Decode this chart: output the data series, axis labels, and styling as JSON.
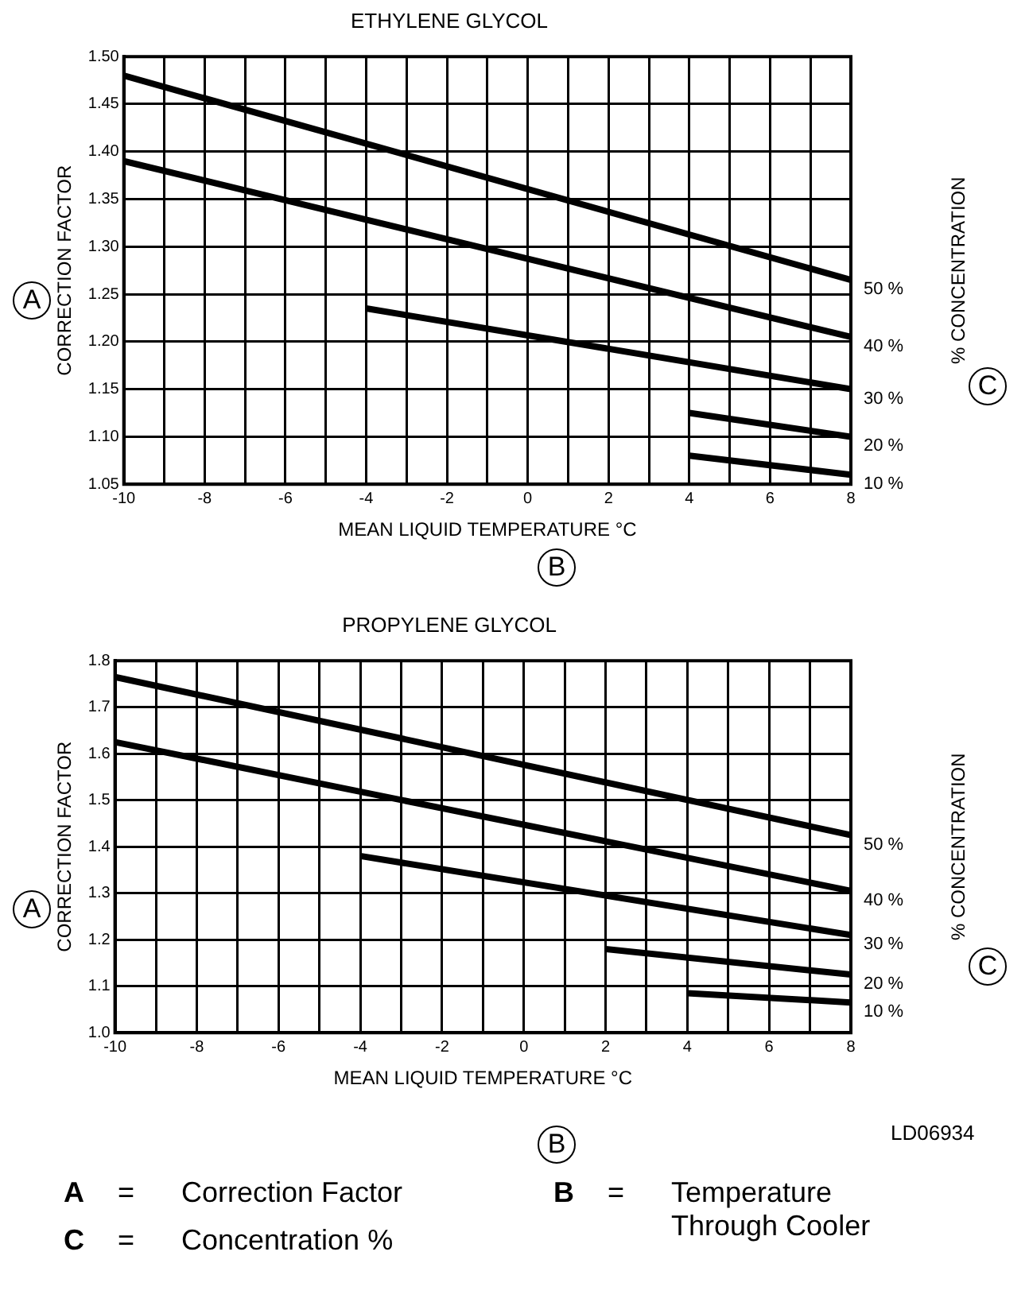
{
  "chart_data": [
    {
      "type": "line",
      "title": "ETHYLENE GLYCOL",
      "xlabel": "MEAN LIQUID TEMPERATURE °C",
      "ylabel": "CORRECTION FACTOR",
      "y2label": "% CONCENTRATION",
      "xlim": [
        -10,
        8
      ],
      "ylim": [
        1.05,
        1.5
      ],
      "xticks": [
        -10,
        {
          "value": -9,
          "label": null
        },
        -8,
        {
          "value": -7,
          "label": null
        },
        -6,
        {
          "value": -5,
          "label": null
        },
        -4,
        {
          "value": -3,
          "label": null
        },
        -2,
        {
          "value": -1,
          "label": null
        },
        0,
        {
          "value": 1,
          "label": null
        },
        2,
        {
          "value": 3,
          "label": null
        },
        4,
        {
          "value": 5,
          "label": null
        },
        6,
        {
          "value": 7,
          "label": null
        },
        8
      ],
      "yticks": [
        1.05,
        {
          "value": 1.1,
          "label": "1.10"
        },
        1.15,
        {
          "value": 1.2,
          "label": "1.20"
        },
        1.25,
        {
          "value": 1.3,
          "label": "1.30"
        },
        1.35,
        {
          "value": 1.4,
          "label": "1.40"
        },
        1.45,
        {
          "value": 1.5,
          "label": "1.50"
        }
      ],
      "grid": true,
      "legend": false,
      "marker": "none",
      "line_style": "solid",
      "series": [
        {
          "name": "50 %",
          "color": "#000000",
          "x": [
            -10,
            8
          ],
          "values": [
            1.48,
            1.265
          ]
        },
        {
          "name": "40 %",
          "color": "#000000",
          "x": [
            -10,
            8
          ],
          "values": [
            1.39,
            1.205
          ]
        },
        {
          "name": "30 %",
          "color": "#000000",
          "x": [
            -4,
            8
          ],
          "values": [
            1.235,
            1.15
          ]
        },
        {
          "name": "20 %",
          "color": "#000000",
          "x": [
            4,
            8
          ],
          "values": [
            1.125,
            1.1
          ]
        },
        {
          "name": "10 %",
          "color": "#000000",
          "x": [
            4,
            8
          ],
          "values": [
            1.08,
            1.06
          ]
        }
      ],
      "annotations": [
        "A",
        "C",
        "B"
      ]
    },
    {
      "type": "line",
      "title": "PROPYLENE GLYCOL",
      "xlabel": "MEAN LIQUID TEMPERATURE °C",
      "ylabel": "CORRECTION FACTOR",
      "y2label": "% CONCENTRATION",
      "xlim": [
        -10,
        8
      ],
      "ylim": [
        1.0,
        1.8
      ],
      "xticks": [
        -10,
        {
          "value": -9,
          "label": null
        },
        -8,
        {
          "value": -7,
          "label": null
        },
        -6,
        {
          "value": -5,
          "label": null
        },
        -4,
        {
          "value": -3,
          "label": null
        },
        -2,
        {
          "value": -1,
          "label": null
        },
        0,
        {
          "value": 1,
          "label": null
        },
        2,
        {
          "value": 3,
          "label": null
        },
        4,
        {
          "value": 5,
          "label": null
        },
        6,
        {
          "value": 7,
          "label": null
        },
        8
      ],
      "yticks": [
        {
          "value": 1.0,
          "label": "1.0"
        },
        1.1,
        1.2,
        1.3,
        1.4,
        1.5,
        1.6,
        1.7,
        1.8
      ],
      "grid": true,
      "legend": false,
      "marker": "none",
      "line_style": "solid",
      "series": [
        {
          "name": "50 %",
          "color": "#000000",
          "x": [
            -10,
            8
          ],
          "values": [
            1.765,
            1.425
          ]
        },
        {
          "name": "40 %",
          "color": "#000000",
          "x": [
            -10,
            8
          ],
          "values": [
            1.625,
            1.305
          ]
        },
        {
          "name": "30 %",
          "color": "#000000",
          "x": [
            -4,
            8
          ],
          "values": [
            1.38,
            1.21
          ]
        },
        {
          "name": "20 %",
          "color": "#000000",
          "x": [
            2,
            8
          ],
          "values": [
            1.18,
            1.125
          ]
        },
        {
          "name": "10 %",
          "color": "#000000",
          "x": [
            4,
            8
          ],
          "values": [
            1.085,
            1.065
          ]
        }
      ],
      "annotations": [
        "A",
        "C",
        "B",
        "LD06934",
        "A = Correction Factor",
        "B = Temperature Through Cooler",
        "C = Concentration %"
      ]
    }
  ]
}
